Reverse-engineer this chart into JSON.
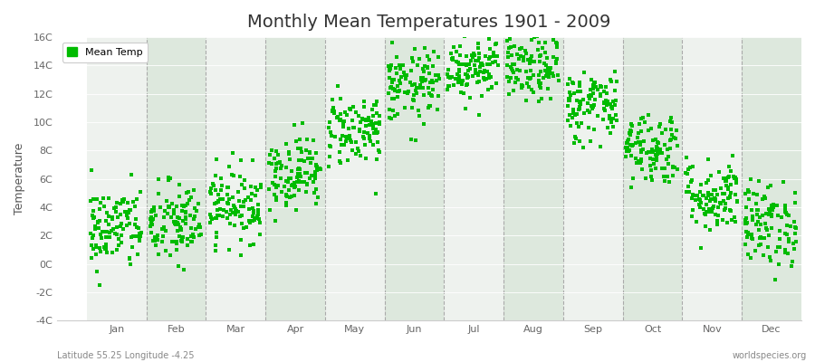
{
  "title": "Monthly Mean Temperatures 1901 - 2009",
  "ylabel": "Temperature",
  "xlabel_labels": [
    "Jan",
    "Feb",
    "Mar",
    "Apr",
    "May",
    "Jun",
    "Jul",
    "Aug",
    "Sep",
    "Oct",
    "Nov",
    "Dec"
  ],
  "subtitle": "Latitude 55.25 Longitude -4.25",
  "watermark": "worldspecies.org",
  "legend_label": "Mean Temp",
  "dot_color": "#00bb00",
  "ylim": [
    -4,
    16
  ],
  "yticks": [
    -4,
    -2,
    0,
    2,
    4,
    6,
    8,
    10,
    12,
    14,
    16
  ],
  "ytick_labels": [
    "-4C",
    "-2C",
    "0C",
    "2C",
    "4C",
    "6C",
    "8C",
    "10C",
    "12C",
    "14C",
    "16C"
  ],
  "bg_color_odd": "#dde8dd",
  "bg_color_even": "#eef2ee",
  "monthly_means": [
    2.5,
    2.8,
    4.2,
    6.5,
    9.5,
    12.5,
    14.0,
    13.8,
    11.2,
    8.2,
    4.8,
    2.8
  ],
  "monthly_stds": [
    1.5,
    1.5,
    1.3,
    1.3,
    1.3,
    1.3,
    1.2,
    1.2,
    1.3,
    1.3,
    1.3,
    1.5
  ],
  "n_years": 109,
  "seed": 42,
  "marker_size": 6,
  "title_fontsize": 14,
  "axis_label_fontsize": 9,
  "tick_fontsize": 8
}
